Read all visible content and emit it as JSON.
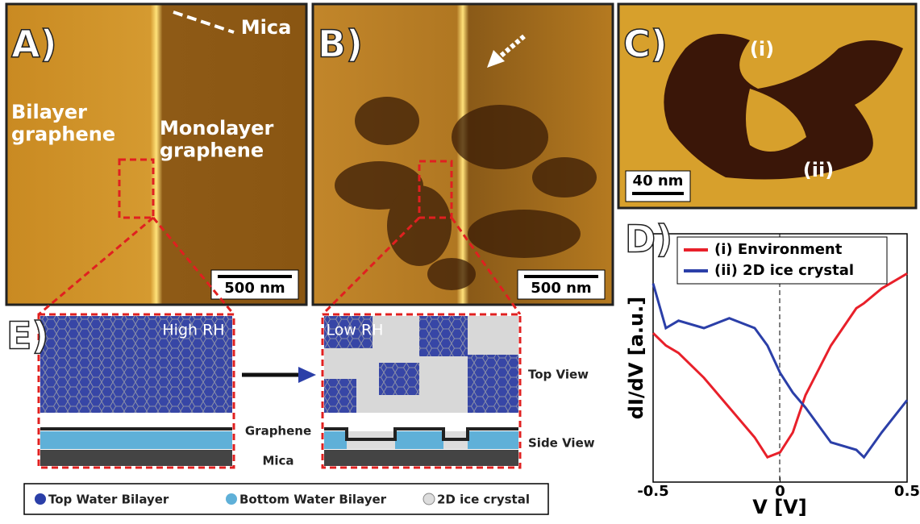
{
  "panels": {
    "a": {
      "label": "A)",
      "mica": "Mica",
      "bilayer": "Bilayer\ngraphene",
      "monolayer": "Monolayer\ngraphene",
      "scale": "500 nm"
    },
    "b": {
      "label": "B)",
      "scale": "500 nm"
    },
    "c": {
      "label": "C)",
      "region1": "(i)",
      "region2": "(ii)",
      "scale": "40 nm"
    },
    "e": {
      "label": "E)",
      "high": "High RH",
      "low": "Low RH",
      "top_view": "Top View",
      "graphene": "Graphene",
      "side_view": "Side View",
      "mica": "Mica"
    },
    "legend": [
      "Top Water Bilayer",
      "Bottom Water Bilayer",
      "2D ice crystal"
    ]
  },
  "chart_data": {
    "type": "line",
    "label": "D)",
    "x_label": "V [V]",
    "y_label": "dI/dV [a.u.]",
    "x": [
      -0.5,
      -0.45,
      -0.4,
      -0.3,
      -0.2,
      -0.1,
      -0.05,
      0,
      0.05,
      0.1,
      0.2,
      0.3,
      0.33,
      0.4,
      0.5
    ],
    "series": [
      {
        "name": "(i) Environment",
        "color": "#e8202a",
        "values": [
          0.6,
          0.55,
          0.52,
          0.42,
          0.3,
          0.18,
          0.1,
          0.12,
          0.2,
          0.35,
          0.55,
          0.7,
          0.72,
          0.78,
          0.84
        ]
      },
      {
        "name": "(ii) 2D ice crystal",
        "color": "#2b3fa8",
        "values": [
          0.8,
          0.62,
          0.65,
          0.62,
          0.66,
          0.62,
          0.55,
          0.44,
          0.36,
          0.3,
          0.16,
          0.13,
          0.1,
          0.2,
          0.33
        ]
      }
    ],
    "xlim": [
      -0.5,
      0.5
    ],
    "ylim": [
      0,
      1
    ],
    "xticks": [
      -0.5,
      0,
      0.5
    ],
    "legend": "upper right"
  }
}
